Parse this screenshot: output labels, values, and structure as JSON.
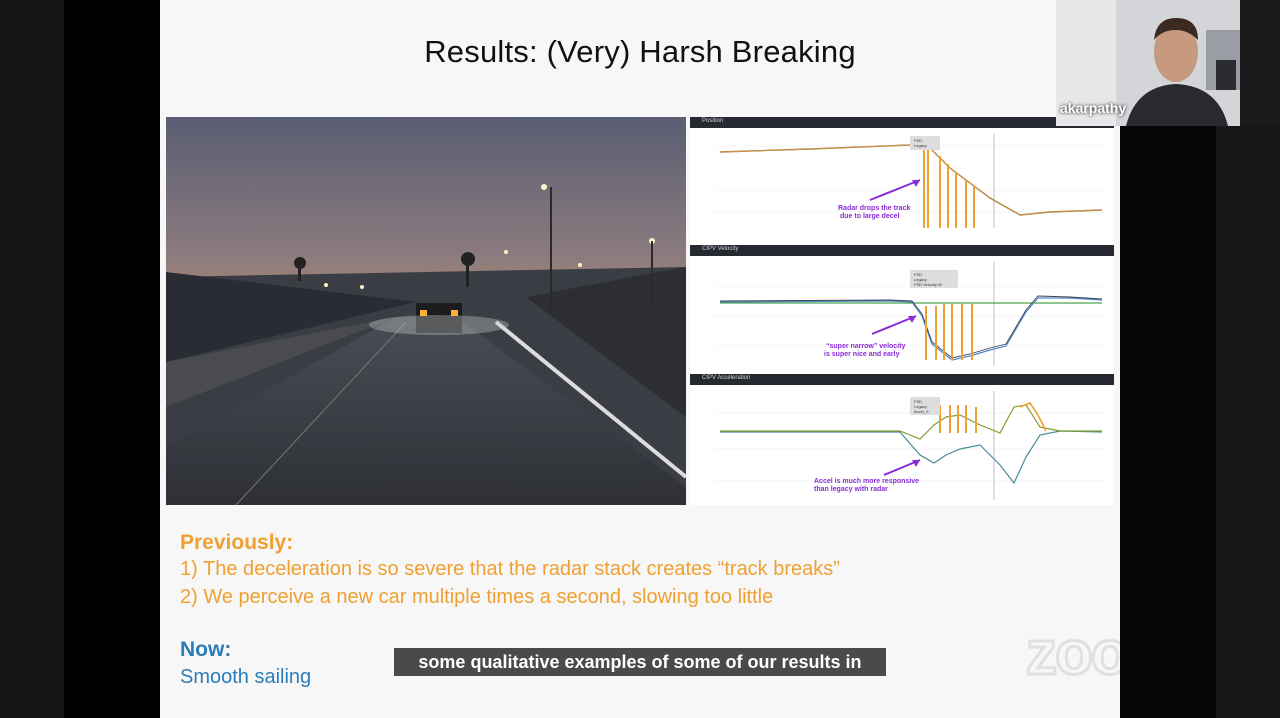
{
  "slide": {
    "title": "Results: (Very) Harsh Breaking",
    "previously_heading": "Previously:",
    "previously_items": [
      "1)   The deceleration is so severe that the radar stack creates “track breaks”",
      "2)   We perceive a new car multiple times a second, slowing too little"
    ],
    "now_heading": "Now:",
    "now_text": "Smooth sailing"
  },
  "charts": [
    {
      "title": "Position",
      "annotation": [
        "Radar drops the track",
        "due to large decel"
      ],
      "legend": [
        "FSD",
        "Legacy"
      ]
    },
    {
      "title": "CIPV Velocity",
      "annotation": [
        "“super narrow” velocity",
        "is super nice and early"
      ],
      "legend": [
        "FSD",
        "Legacy",
        "FSD Velocity W"
      ]
    },
    {
      "title": "CIPV Acceleration",
      "annotation": [
        "Accel is much more responsive",
        "than legacy with radar"
      ],
      "legend": [
        "FSD",
        "Legacy",
        "Accel_X"
      ]
    }
  ],
  "caption": "some qualitative examples of some of our results in",
  "participant": {
    "name": "akarpathy"
  },
  "brand": {
    "logo": "zoom"
  },
  "colors": {
    "orange": "#f0a030",
    "blue": "#2b7db8",
    "purple": "#8a2bd6",
    "caption_bg": "#4a4a4a"
  }
}
